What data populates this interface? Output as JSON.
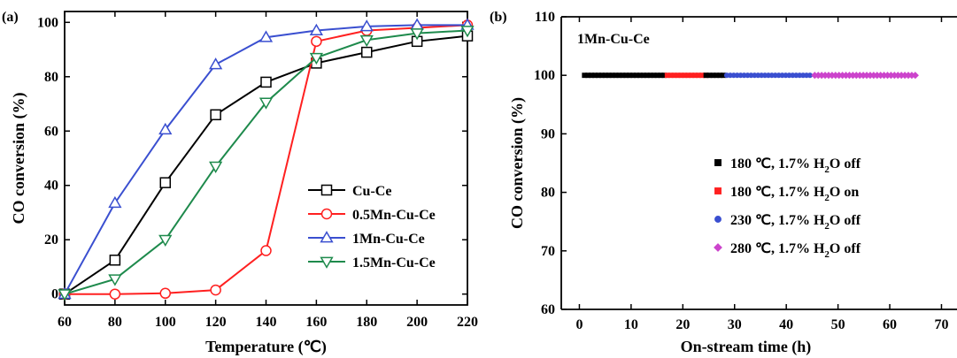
{
  "chart_data": [
    {
      "panel_label": "(a)",
      "type": "line",
      "xlabel": "Temperature (℃)",
      "ylabel": "CO conversion (%)",
      "xlim": [
        60,
        220
      ],
      "ylim": [
        -4,
        104
      ],
      "xticks": [
        60,
        80,
        100,
        120,
        140,
        160,
        180,
        200,
        220
      ],
      "yticks": [
        0,
        20,
        40,
        60,
        80,
        100
      ],
      "legend_position": "lower-right",
      "x": [
        60,
        80,
        100,
        120,
        140,
        160,
        180,
        200,
        220
      ],
      "series": [
        {
          "name": "Cu-Ce",
          "marker": "square",
          "color": "#000000",
          "values": [
            0,
            12.5,
            41,
            66,
            78,
            85,
            89,
            93,
            95
          ]
        },
        {
          "name": "0.5Mn-Cu-Ce",
          "marker": "circle",
          "color": "#ff2020",
          "values": [
            0,
            0,
            0.3,
            1.5,
            16,
            93,
            97,
            98,
            99
          ]
        },
        {
          "name": "1Mn-Cu-Ce",
          "marker": "triangle-up",
          "color": "#3a4fd0",
          "values": [
            0,
            33.5,
            60.5,
            84.5,
            94.5,
            97,
            98.5,
            99,
            99
          ]
        },
        {
          "name": "1.5Mn-Cu-Ce",
          "marker": "triangle-down",
          "color": "#1e8a4c",
          "values": [
            0,
            5.5,
            20,
            47,
            70.5,
            87,
            93.5,
            96,
            97
          ]
        }
      ]
    },
    {
      "panel_label": "(b)",
      "annotation": "1Mn-Cu-Ce",
      "type": "scatter",
      "xlabel": "On-stream time (h)",
      "ylabel": "CO conversion (%)",
      "xlim": [
        -3.5,
        73
      ],
      "ylim": [
        60,
        110
      ],
      "xticks": [
        0,
        10,
        20,
        30,
        40,
        50,
        60,
        70
      ],
      "yticks": [
        60,
        70,
        80,
        90,
        100,
        110
      ],
      "legend_position": "center-right",
      "series": [
        {
          "name_parts": [
            "180 ℃, 1.7% H",
            "2",
            "O off"
          ],
          "marker": "square",
          "color": "#000000",
          "x_range": [
            1,
            17
          ],
          "step": 0.67,
          "value": 100
        },
        {
          "name_parts": [
            "180 ℃, 1.7% H",
            "2",
            "O on"
          ],
          "marker": "square",
          "color": "#ff2020",
          "x_range": [
            17,
            24.5
          ],
          "step": 0.67,
          "value": 100
        },
        {
          "name_parts": [
            "180 ℃, 1.7% H",
            "2",
            "O off"
          ],
          "marker": "square",
          "color": "#000000",
          "x_range": [
            24.5,
            28
          ],
          "step": 0.67,
          "value": 100,
          "legend": false
        },
        {
          "name_parts": [
            "230 ℃, 1.7% H",
            "2",
            "O off"
          ],
          "marker": "circle",
          "color": "#3a4fd0",
          "x_range": [
            28.5,
            45
          ],
          "step": 0.67,
          "value": 100
        },
        {
          "name_parts": [
            "280 ℃, 1.7% H",
            "2",
            "O off"
          ],
          "marker": "diamond",
          "color": "#cc44cc",
          "x_range": [
            45.5,
            65
          ],
          "step": 0.67,
          "value": 100
        }
      ]
    }
  ]
}
